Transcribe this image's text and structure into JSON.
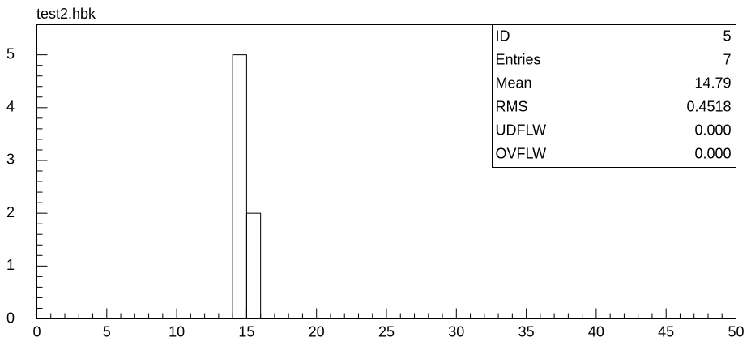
{
  "chart_data": {
    "type": "histogram",
    "title": "test2.hbk",
    "bins": [
      14,
      15,
      16
    ],
    "values": [
      5,
      2
    ],
    "color": "#000000",
    "xlim": [
      0,
      50
    ],
    "xticks": [
      0,
      5,
      10,
      15,
      20,
      25,
      30,
      35,
      40,
      45,
      50
    ],
    "ylim": [
      0,
      5.57
    ],
    "yticks": [
      0,
      1,
      2,
      3,
      4,
      5
    ],
    "stats": [
      {
        "label": "ID",
        "value": "5"
      },
      {
        "label": "Entries",
        "value": "7"
      },
      {
        "label": "Mean",
        "value": "14.79"
      },
      {
        "label": "RMS",
        "value": "0.4518"
      },
      {
        "label": "UDFLW",
        "value": "0.000"
      },
      {
        "label": "OVFLW",
        "value": "0.000"
      }
    ]
  }
}
